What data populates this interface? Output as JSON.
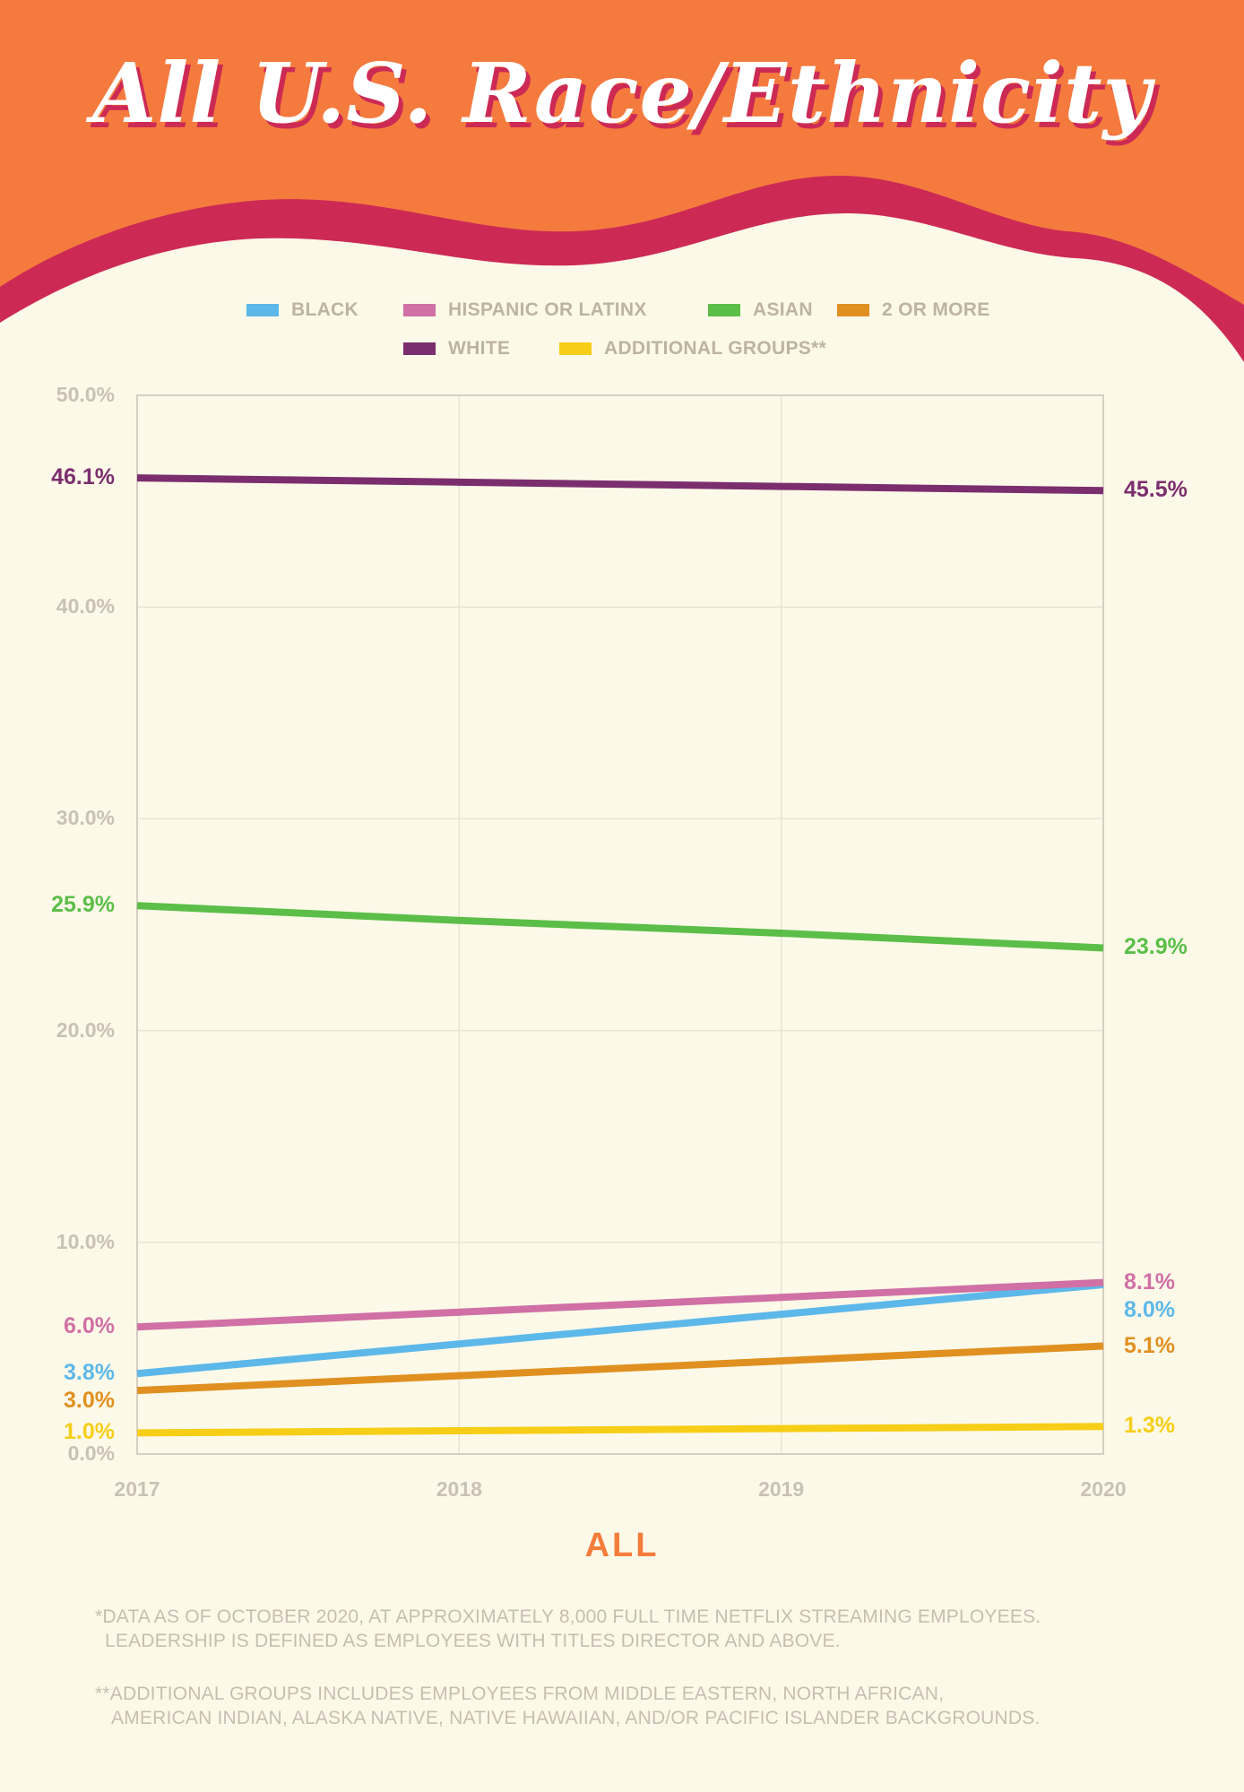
{
  "title": "All U.S. Race/Ethnicity",
  "subtitle": "ALL",
  "colors": {
    "header_orange": "#F57A3E",
    "wave_red": "#CC2A55",
    "background": "#FDF9E8"
  },
  "footnotes": [
    "*DATA AS OF OCTOBER 2020, AT APPROXIMATELY 8,000 FULL TIME NETFLIX STREAMING EMPLOYEES.",
    "LEADERSHIP IS DEFINED AS EMPLOYEES WITH TITLES DIRECTOR AND ABOVE.",
    "**ADDITIONAL GROUPS INCLUDES EMPLOYEES FROM MIDDLE EASTERN, NORTH AFRICAN,",
    "AMERICAN INDIAN, ALASKA NATIVE, NATIVE HAWAIIAN, AND/OR PACIFIC ISLANDER BACKGROUNDS."
  ],
  "chart_data": {
    "type": "line",
    "title": "All U.S. Race/Ethnicity",
    "xlabel": "",
    "ylabel": "",
    "x": [
      "2017",
      "2018",
      "2019",
      "2020"
    ],
    "yticks": [
      "50.0%",
      "40.0%",
      "30.0%",
      "20.0%",
      "10.0%",
      "0.0%"
    ],
    "ytick_values": [
      50,
      40,
      30,
      20,
      10,
      0
    ],
    "ylim": [
      0,
      50
    ],
    "grid": true,
    "legend_position": "top",
    "series": [
      {
        "name": "BLACK",
        "color": "#5DB8EA",
        "values": [
          3.8,
          5.2,
          6.6,
          8.0
        ],
        "start_label": "3.8%",
        "end_label": "8.0%"
      },
      {
        "name": "HISPANIC OR LATINX",
        "color": "#D070A5",
        "values": [
          6.0,
          6.7,
          7.4,
          8.1
        ],
        "start_label": "6.0%",
        "end_label": "8.1%"
      },
      {
        "name": "ASIAN",
        "color": "#5BBE48",
        "values": [
          25.9,
          25.2,
          24.6,
          23.9
        ],
        "start_label": "25.9%",
        "end_label": "23.9%"
      },
      {
        "name": "2 OR MORE",
        "color": "#E09020",
        "values": [
          3.0,
          3.7,
          4.4,
          5.1
        ],
        "start_label": "3.0%",
        "end_label": "5.1%"
      },
      {
        "name": "WHITE",
        "color": "#7B2E6E",
        "values": [
          46.1,
          45.9,
          45.7,
          45.5
        ],
        "start_label": "46.1%",
        "end_label": "45.5%"
      },
      {
        "name": "ADDITIONAL GROUPS**",
        "color": "#F7CE17",
        "values": [
          1.0,
          1.1,
          1.2,
          1.3
        ],
        "start_label": "1.0%",
        "end_label": "1.3%"
      }
    ]
  }
}
